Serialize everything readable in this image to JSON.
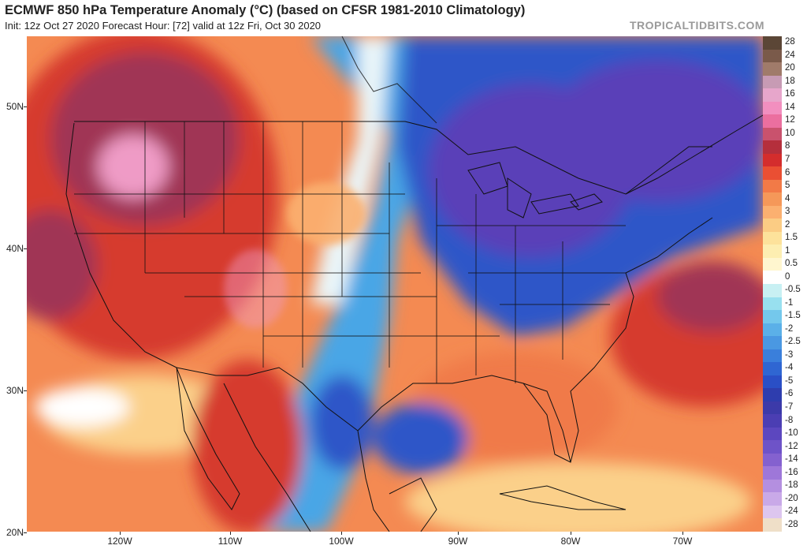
{
  "header": {
    "title": "ECMWF 850 hPa Temperature Anomaly (°C) (based on CFSR 1981-2010 Climatology)",
    "subtitle": "Init: 12z Oct 27 2020   Forecast Hour: [72]   valid at 12z Fri, Oct 30 2020",
    "brand": "TROPICALTIDBITS.COM"
  },
  "map": {
    "lat_labels": [
      "50N",
      "40N",
      "30N",
      "20N"
    ],
    "lon_labels": [
      "120W",
      "110W",
      "100W",
      "90W",
      "80W",
      "70W"
    ],
    "colors": {
      "very_cold": "#5a3fb8",
      "cold": "#2d57c8",
      "cool": "#49a6e6",
      "near_zero": "#eaf6f9",
      "warm": "#f07a4a",
      "hot": "#d63a2e",
      "very_hot": "#a03455",
      "extreme": "#ef9bc6",
      "land_lines": "#111111"
    }
  },
  "colorbar": {
    "labels": [
      "28",
      "24",
      "20",
      "18",
      "16",
      "14",
      "12",
      "10",
      "8",
      "7",
      "6",
      "5",
      "4",
      "3",
      "2",
      "1.5",
      "1",
      "0.5",
      "0",
      "-0.5",
      "-1",
      "-1.5",
      "-2",
      "-2.5",
      "-3",
      "-4",
      "-5",
      "-6",
      "-7",
      "-8",
      "-10",
      "-12",
      "-14",
      "-16",
      "-18",
      "-20",
      "-24",
      "-28"
    ],
    "colors": [
      "#5b4636",
      "#7a5a4a",
      "#a07b6a",
      "#c79bb4",
      "#e7a6cb",
      "#f28fbf",
      "#eb6f9f",
      "#c9526d",
      "#b52f3c",
      "#d42d2d",
      "#ea4f33",
      "#f27a47",
      "#f59859",
      "#fbb070",
      "#fbcc84",
      "#fde29b",
      "#fdeeb1",
      "#fff6cf",
      "#ffffff",
      "#c8f0f3",
      "#98e0ef",
      "#74c8ec",
      "#5bb0e8",
      "#4a98e2",
      "#3a7fdb",
      "#2f66d2",
      "#2a4fc6",
      "#2e3dae",
      "#3c3aa9",
      "#4b3eb3",
      "#5c47bf",
      "#6e53c8",
      "#8461cf",
      "#9e77d9",
      "#b48fe0",
      "#c9a9e8",
      "#ddc6ef",
      "#efdfc8"
    ]
  }
}
